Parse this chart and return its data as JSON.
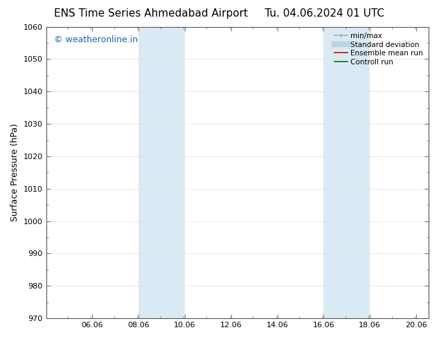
{
  "title_left": "ENS Time Series Ahmedabad Airport",
  "title_right": "Tu. 04.06.2024 01 UTC",
  "ylabel": "Surface Pressure (hPa)",
  "ylim": [
    970,
    1060
  ],
  "yticks": [
    970,
    980,
    990,
    1000,
    1010,
    1020,
    1030,
    1040,
    1050,
    1060
  ],
  "xlim_start": 4.06,
  "xlim_end": 20.6,
  "xticks": [
    6.06,
    8.06,
    10.06,
    12.06,
    14.06,
    16.06,
    18.06,
    20.06
  ],
  "xticklabels": [
    "06.06",
    "08.06",
    "10.06",
    "12.06",
    "14.06",
    "16.06",
    "18.06",
    "20.06"
  ],
  "shaded_bands": [
    {
      "xmin": 8.06,
      "xmax": 10.06
    },
    {
      "xmin": 16.06,
      "xmax": 18.06
    }
  ],
  "shade_color": "#daeaf5",
  "background_color": "#ffffff",
  "watermark_text": "© weatheronline.in",
  "watermark_color": "#1a5dcc",
  "watermark_fontsize": 9,
  "title_fontsize": 11,
  "axis_fontsize": 8,
  "ylabel_fontsize": 9,
  "legend_items": [
    {
      "label": "min/max",
      "color": "#aaaaaa",
      "lw": 1.2
    },
    {
      "label": "Standard deviation",
      "color": "#b8d4ea",
      "lw": 6
    },
    {
      "label": "Ensemble mean run",
      "color": "#dd0000",
      "lw": 1.2
    },
    {
      "label": "Controll run",
      "color": "#007700",
      "lw": 1.2
    }
  ]
}
